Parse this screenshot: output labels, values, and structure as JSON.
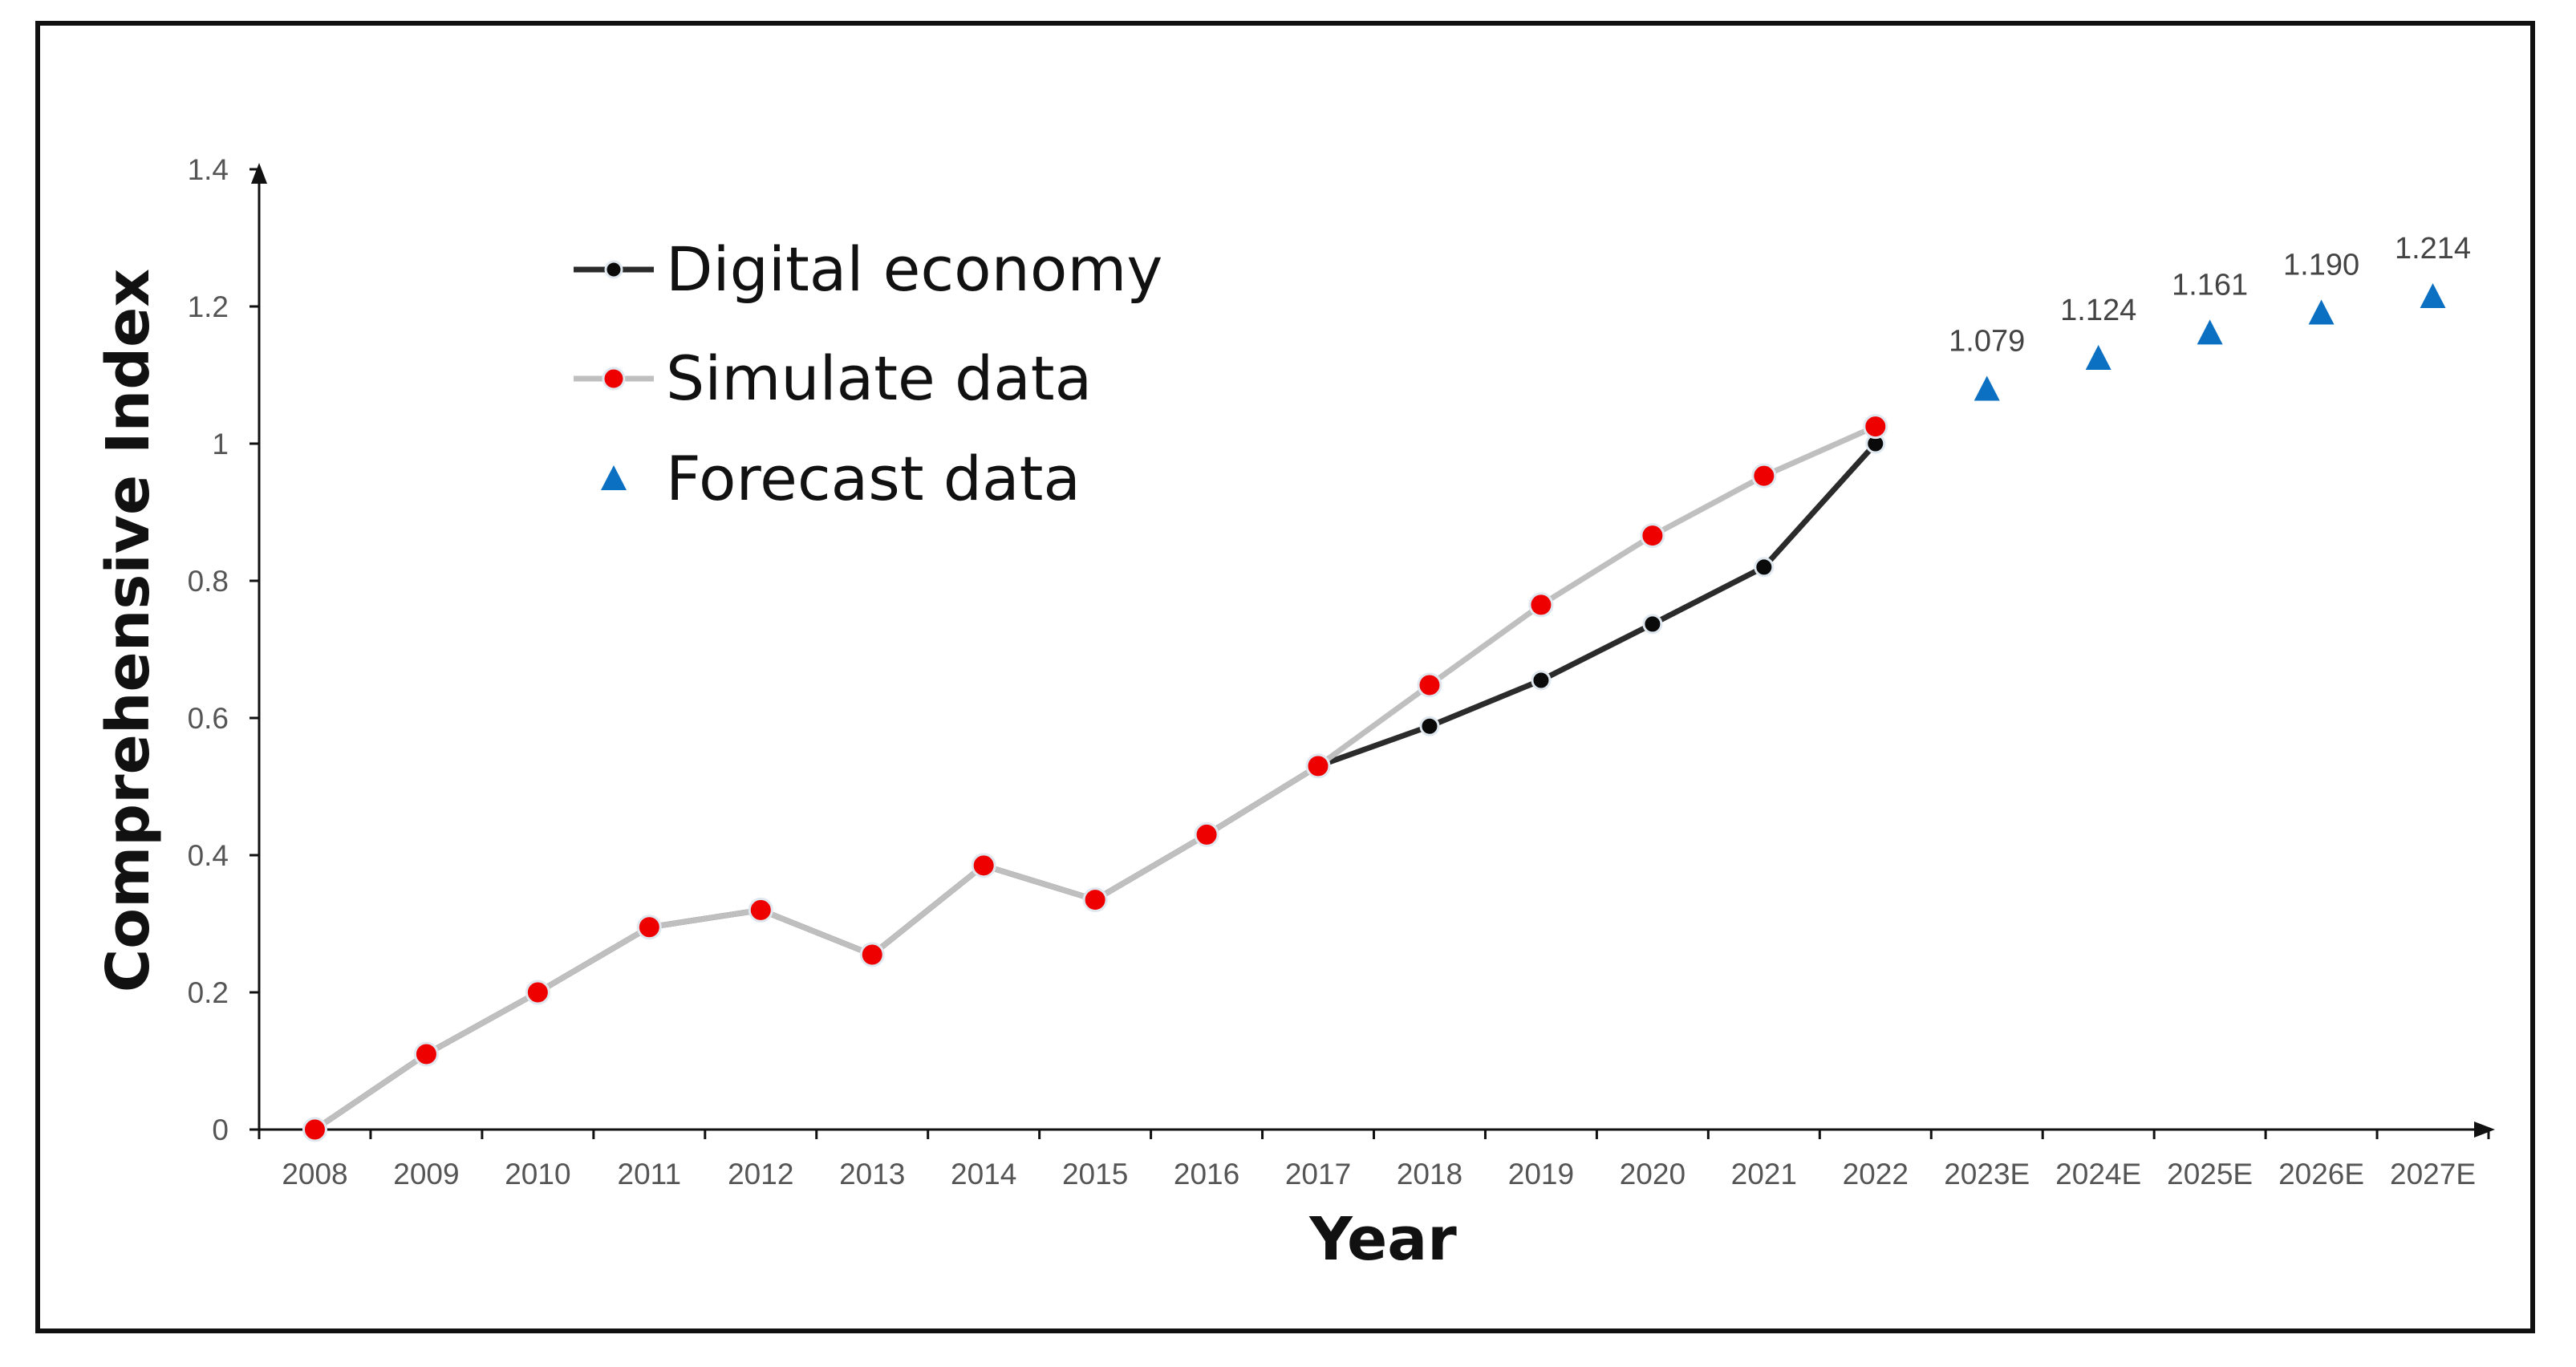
{
  "chart_data": {
    "type": "line",
    "title": "",
    "xlabel": "Year",
    "ylabel": "Comprehensive Index",
    "ylim": [
      0,
      1.4
    ],
    "y_ticks": [
      "0",
      "0.2",
      "0.4",
      "0.6",
      "0.8",
      "1",
      "1.2",
      "1.4"
    ],
    "categories": [
      "2008",
      "2009",
      "2010",
      "2011",
      "2012",
      "2013",
      "2014",
      "2015",
      "2016",
      "2017",
      "2018",
      "2019",
      "2020",
      "2021",
      "2022",
      "2023E",
      "2024E",
      "2025E",
      "2026E",
      "2027E"
    ],
    "legend_position": "top-left",
    "series": [
      {
        "name": "Digital economy",
        "color": "#2b2b2b",
        "marker": "circle",
        "values": [
          0.0,
          0.11,
          0.2,
          0.295,
          0.32,
          0.255,
          0.385,
          0.335,
          0.43,
          0.53,
          0.588,
          0.655,
          0.737,
          0.82,
          1.0,
          null,
          null,
          null,
          null,
          null
        ]
      },
      {
        "name": "Simulate data",
        "color": "#bfbfbf",
        "marker_color": "#ee0000",
        "marker": "circle",
        "values": [
          0.0,
          0.11,
          0.2,
          0.295,
          0.32,
          0.255,
          0.385,
          0.335,
          0.43,
          0.53,
          0.648,
          0.765,
          0.866,
          0.953,
          1.025,
          null,
          null,
          null,
          null,
          null
        ]
      },
      {
        "name": "Forecast data",
        "color": "#0b6fc2",
        "marker": "triangle",
        "values": [
          null,
          null,
          null,
          null,
          null,
          null,
          null,
          null,
          null,
          null,
          null,
          null,
          null,
          null,
          null,
          1.079,
          1.124,
          1.161,
          1.19,
          1.214
        ],
        "labels": [
          null,
          null,
          null,
          null,
          null,
          null,
          null,
          null,
          null,
          null,
          null,
          null,
          null,
          null,
          null,
          "1.079",
          "1.124",
          "1.161",
          "1.190",
          "1.214"
        ]
      }
    ]
  }
}
